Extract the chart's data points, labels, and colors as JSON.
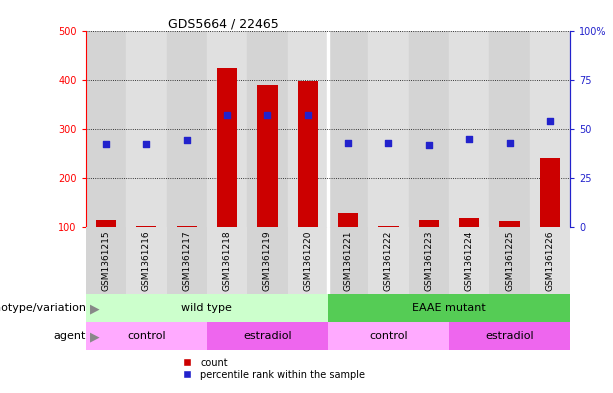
{
  "title": "GDS5664 / 22465",
  "samples": [
    "GSM1361215",
    "GSM1361216",
    "GSM1361217",
    "GSM1361218",
    "GSM1361219",
    "GSM1361220",
    "GSM1361221",
    "GSM1361222",
    "GSM1361223",
    "GSM1361224",
    "GSM1361225",
    "GSM1361226"
  ],
  "counts": [
    115,
    103,
    103,
    425,
    390,
    398,
    130,
    103,
    115,
    120,
    113,
    242
  ],
  "percentiles_left_axis": [
    270,
    270,
    278,
    330,
    330,
    330,
    272,
    272,
    268,
    280,
    272,
    318
  ],
  "ylim_left": [
    100,
    500
  ],
  "ylim_right": [
    0,
    100
  ],
  "yticks_left": [
    100,
    200,
    300,
    400,
    500
  ],
  "yticks_right": [
    0,
    25,
    50,
    75,
    100
  ],
  "ytick_right_labels": [
    "0",
    "25",
    "50",
    "75",
    "100%"
  ],
  "bar_color": "#cc0000",
  "dot_color": "#2222cc",
  "bar_width": 0.5,
  "col_bg_even": "#d4d4d4",
  "col_bg_odd": "#e0e0e0",
  "col_separator": 5.5,
  "genotype_groups": [
    {
      "label": "wild type",
      "start": 0,
      "end": 5,
      "color": "#ccffcc"
    },
    {
      "label": "EAAE mutant",
      "start": 6,
      "end": 11,
      "color": "#55cc55"
    }
  ],
  "agent_groups": [
    {
      "label": "control",
      "start": 0,
      "end": 2,
      "color": "#ffaaff"
    },
    {
      "label": "estradiol",
      "start": 3,
      "end": 5,
      "color": "#ee66ee"
    },
    {
      "label": "control",
      "start": 6,
      "end": 8,
      "color": "#ffaaff"
    },
    {
      "label": "estradiol",
      "start": 9,
      "end": 11,
      "color": "#ee66ee"
    }
  ],
  "legend_count_label": "count",
  "legend_pct_label": "percentile rank within the sample",
  "row_label_genotype": "genotype/variation",
  "row_label_agent": "agent",
  "fig_bg": "#ffffff",
  "title_fontsize": 9,
  "axis_fontsize": 8,
  "tick_fontsize": 7,
  "label_fontsize": 8
}
